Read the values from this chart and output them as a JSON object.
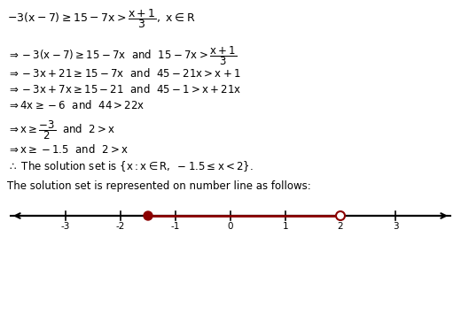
{
  "background_color": "#ffffff",
  "text_color": "#000000",
  "dark_red": "#8B0000",
  "number_line": {
    "xmin": -4.0,
    "xmax": 4.0,
    "ticks": [
      -3,
      -2,
      -1,
      0,
      1,
      2,
      3
    ],
    "filled_point": -1.5,
    "open_point": 2.0
  }
}
